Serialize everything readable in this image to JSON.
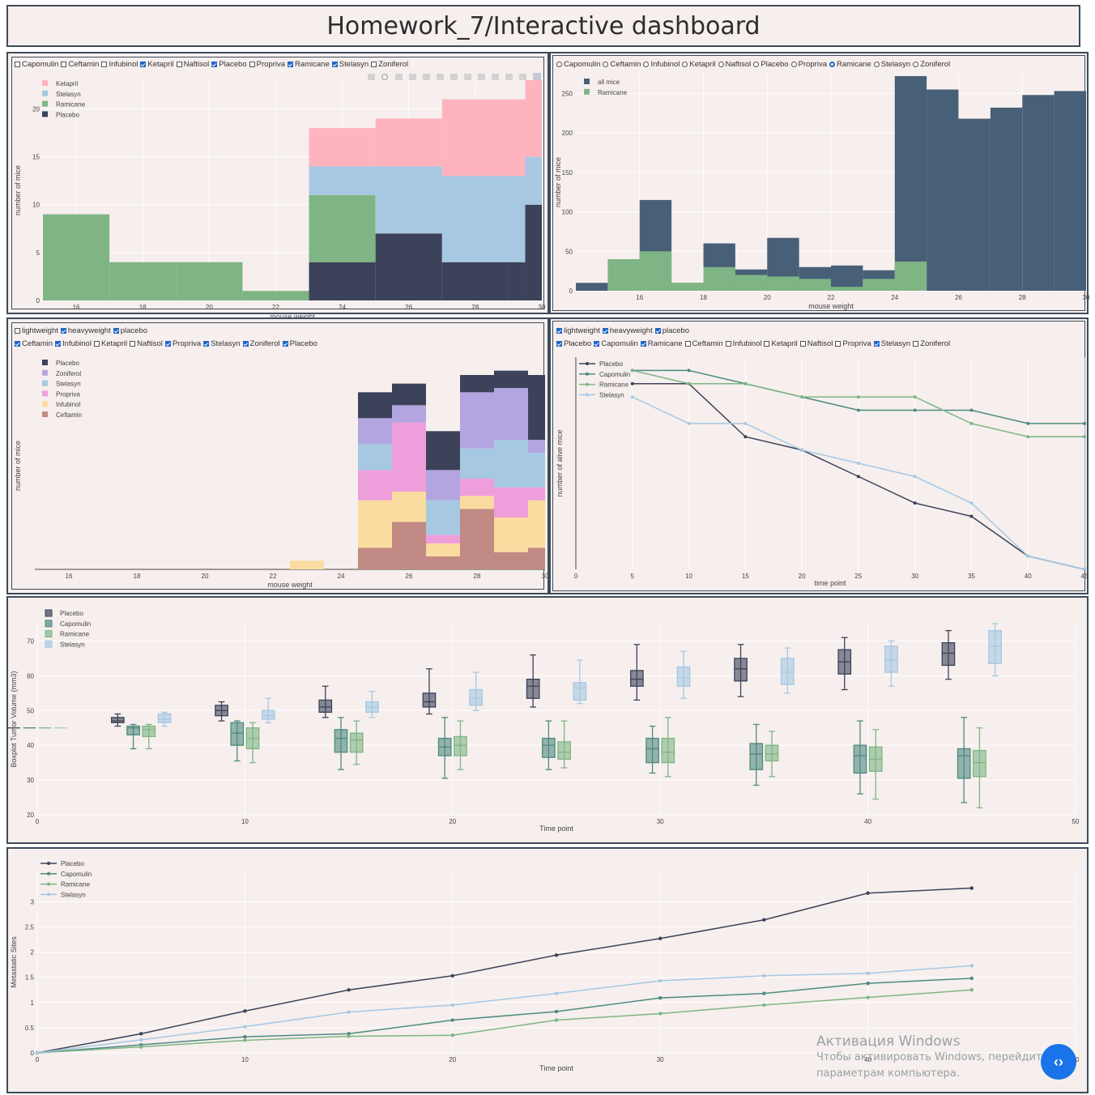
{
  "page_title": "Homework_7/Interactive dashboard",
  "panel1": {
    "checklist": [
      {
        "label": "Capomulin",
        "checked": false
      },
      {
        "label": "Ceftamin",
        "checked": false
      },
      {
        "label": "Infubinol",
        "checked": false
      },
      {
        "label": "Ketapril",
        "checked": true
      },
      {
        "label": "Naftisol",
        "checked": false
      },
      {
        "label": "Placebo",
        "checked": true
      },
      {
        "label": "Propriva",
        "checked": false
      },
      {
        "label": "Ramicane",
        "checked": true
      },
      {
        "label": "Stelasyn",
        "checked": true
      },
      {
        "label": "Zoniferol",
        "checked": false
      }
    ]
  },
  "panel2": {
    "radio": [
      {
        "label": "Capomulin",
        "checked": false
      },
      {
        "label": "Ceftamin",
        "checked": false
      },
      {
        "label": "Infubinol",
        "checked": false
      },
      {
        "label": "Ketapril",
        "checked": false
      },
      {
        "label": "Naftisol",
        "checked": false
      },
      {
        "label": "Placebo",
        "checked": false
      },
      {
        "label": "Propriva",
        "checked": false
      },
      {
        "label": "Ramicane",
        "checked": true
      },
      {
        "label": "Stelasyn",
        "checked": false
      },
      {
        "label": "Zoniferol",
        "checked": false
      }
    ]
  },
  "panel3": {
    "weight_checklist": [
      {
        "label": "lightweight",
        "checked": false
      },
      {
        "label": "heavyweight",
        "checked": true
      },
      {
        "label": "placebo",
        "checked": true
      }
    ],
    "drug_checklist": [
      {
        "label": "Ceftamin",
        "checked": true
      },
      {
        "label": "Infubinol",
        "checked": true
      },
      {
        "label": "Ketapril",
        "checked": false
      },
      {
        "label": "Naftisol",
        "checked": false
      },
      {
        "label": "Propriva",
        "checked": true
      },
      {
        "label": "Stelasyn",
        "checked": true
      },
      {
        "label": "Zoniferol",
        "checked": true
      },
      {
        "label": "Placebo",
        "checked": true
      }
    ]
  },
  "panel4": {
    "weight_checklist": [
      {
        "label": "lightweight",
        "checked": true
      },
      {
        "label": "heavyweight",
        "checked": true
      },
      {
        "label": "placebo",
        "checked": true
      }
    ],
    "drug_checklist": [
      {
        "label": "Placebo",
        "checked": true
      },
      {
        "label": "Capomulin",
        "checked": true
      },
      {
        "label": "Ramicane",
        "checked": true
      },
      {
        "label": "Ceftamin",
        "checked": false
      },
      {
        "label": "Infubinol",
        "checked": false
      },
      {
        "label": "Ketapril",
        "checked": false
      },
      {
        "label": "Naftisol",
        "checked": false
      },
      {
        "label": "Propriva",
        "checked": false
      },
      {
        "label": "Stelasyn",
        "checked": true
      },
      {
        "label": "Zoniferol",
        "checked": false
      }
    ]
  },
  "colors": {
    "Ketapril": "#ffb3bf",
    "Stelasyn": "#a6c8e3",
    "Ramicane": "#7fb585",
    "Placebo": "#3c4259",
    "Zoniferol": "#b3a5df",
    "Propriva": "#ef9edc",
    "Infubinol": "#fbdca0",
    "Ceftamin": "#c28a84",
    "Capomulin": "#4e8a7f",
    "AllMice": "#485f78"
  },
  "chart_data": [
    {
      "id": "weight_hist_stacked",
      "type": "bar",
      "xlabel": "mouse weight",
      "ylabel": "number of mice",
      "xlim": [
        15,
        30
      ],
      "ylim": [
        0,
        23
      ],
      "xticks": [
        16,
        18,
        20,
        22,
        24,
        26,
        28,
        30
      ],
      "yticks": [
        0,
        5,
        10,
        15,
        20
      ],
      "bin_edges": [
        15,
        17,
        19,
        21,
        23,
        25,
        27,
        29,
        29.5,
        30
      ],
      "series": [
        {
          "name": "Placebo",
          "values": [
            0,
            0,
            0,
            0,
            4,
            7,
            4,
            4,
            10
          ]
        },
        {
          "name": "Ramicane",
          "values": [
            9,
            4,
            4,
            1,
            7,
            0,
            0,
            0,
            0
          ]
        },
        {
          "name": "Stelasyn",
          "values": [
            0,
            0,
            0,
            0,
            3,
            7,
            9,
            9,
            5
          ]
        },
        {
          "name": "Ketapril",
          "values": [
            0,
            0,
            0,
            0,
            4,
            5,
            8,
            8,
            8
          ]
        }
      ],
      "legend": [
        "Ketapril",
        "Stelasyn",
        "Ramicane",
        "Placebo"
      ]
    },
    {
      "id": "weight_hist_overlay",
      "type": "bar",
      "xlabel": "mouse weight",
      "ylabel": "number of mice",
      "xlim": [
        14,
        30
      ],
      "ylim": [
        0,
        275
      ],
      "xticks": [
        16,
        18,
        20,
        22,
        24,
        26,
        28,
        30
      ],
      "yticks": [
        0,
        50,
        100,
        150,
        200,
        250
      ],
      "bin_edges": [
        14,
        15,
        16,
        17,
        18,
        19,
        20,
        21,
        22,
        23,
        24,
        25,
        26,
        27,
        28,
        29,
        30
      ],
      "series": [
        {
          "name": "all mice",
          "values": [
            10,
            0,
            115,
            10,
            60,
            27,
            67,
            30,
            32,
            26,
            272,
            255,
            218,
            232,
            248,
            253
          ]
        },
        {
          "name": "Ramicane",
          "values": [
            0,
            40,
            50,
            10,
            30,
            20,
            18,
            15,
            5,
            15,
            37,
            0,
            0,
            0,
            0,
            0
          ]
        }
      ],
      "legend": [
        "all mice",
        "Ramicane"
      ]
    },
    {
      "id": "weight_hist_drugs",
      "type": "bar",
      "xlabel": "mouse weight",
      "ylabel": "number of mice",
      "xlim": [
        15,
        30
      ],
      "ylim": [
        0,
        24
      ],
      "xticks": [
        16,
        18,
        20,
        22,
        24,
        26,
        28,
        30
      ],
      "bin_edges": [
        22.5,
        23.5,
        24.5,
        25.5,
        26.5,
        27.5,
        28.5,
        29.5,
        30
      ],
      "series": [
        {
          "name": "Ceftamin",
          "values": [
            0,
            0,
            2.5,
            5.5,
            1.5,
            7,
            2,
            2.5
          ]
        },
        {
          "name": "Infubinol",
          "values": [
            1,
            0,
            5.5,
            3.5,
            1.5,
            1.5,
            4,
            5.5
          ]
        },
        {
          "name": "Propriva",
          "values": [
            0,
            0,
            3.5,
            8,
            1,
            2,
            3.5,
            1.5
          ]
        },
        {
          "name": "Stelasyn",
          "values": [
            0,
            0,
            3,
            0,
            4,
            3.5,
            5.5,
            4
          ]
        },
        {
          "name": "Zoniferol",
          "values": [
            0,
            0,
            3,
            2,
            3.5,
            6.5,
            6,
            1.5
          ]
        },
        {
          "name": "Placebo",
          "values": [
            0,
            0,
            3,
            2.5,
            4.5,
            2,
            2,
            7.5
          ]
        }
      ],
      "legend": [
        "Placebo",
        "Zoniferol",
        "Stelasyn",
        "Propriva",
        "Infubinol",
        "Ceftamin"
      ]
    },
    {
      "id": "survival_lines",
      "type": "line",
      "xlabel": "time point",
      "ylabel": "number of alive mice",
      "xlim": [
        0,
        45
      ],
      "ylim": [
        0,
        16
      ],
      "xticks": [
        0,
        5,
        10,
        15,
        20,
        25,
        30,
        35,
        40,
        45
      ],
      "x": [
        5,
        10,
        15,
        20,
        25,
        30,
        35,
        40,
        45
      ],
      "series": [
        {
          "name": "Placebo",
          "values": [
            14,
            14,
            10,
            9,
            7,
            5,
            4,
            1,
            0
          ]
        },
        {
          "name": "Capomulin",
          "values": [
            15,
            15,
            14,
            13,
            12,
            12,
            12,
            11,
            11
          ]
        },
        {
          "name": "Ramicane",
          "values": [
            15,
            14,
            14,
            13,
            13,
            13,
            11,
            10,
            10
          ]
        },
        {
          "name": "Stelasyn",
          "values": [
            13,
            11,
            11,
            9,
            8,
            7,
            5,
            1,
            0
          ]
        }
      ]
    },
    {
      "id": "tumor_boxplot",
      "type": "box",
      "xlabel": "Time point",
      "ylabel": "Boxplot Tumor Volume (mm3)",
      "xlim": [
        0,
        50
      ],
      "ylim": [
        20,
        75
      ],
      "xticks": [
        0,
        10,
        20,
        30,
        40,
        50
      ],
      "yticks": [
        20,
        30,
        40,
        50,
        60,
        70
      ],
      "x": [
        0,
        5,
        10,
        15,
        20,
        25,
        30,
        35,
        40,
        45
      ],
      "series": [
        {
          "name": "Placebo",
          "boxes": [
            [
              45,
              45,
              45,
              45,
              45
            ],
            [
              45.5,
              46.5,
              47,
              48,
              49
            ],
            [
              47,
              48.5,
              50,
              51.5,
              52.5
            ],
            [
              48,
              49.5,
              51,
              53,
              57
            ],
            [
              49,
              51,
              52.5,
              55,
              62
            ],
            [
              51,
              53.5,
              57,
              59,
              66
            ],
            [
              53,
              57,
              59,
              61.5,
              69
            ],
            [
              54,
              58.5,
              62,
              65,
              69
            ],
            [
              56,
              60.5,
              64,
              67.5,
              71
            ],
            [
              59,
              63,
              66.5,
              69.5,
              73
            ]
          ]
        },
        {
          "name": "Capomulin",
          "boxes": [
            [
              45,
              45,
              45,
              45,
              45
            ],
            [
              39,
              43,
              45,
              45.5,
              46
            ],
            [
              35.5,
              40,
              43.5,
              46.5,
              47
            ],
            [
              33,
              38,
              42,
              44.5,
              48
            ],
            [
              30.5,
              37,
              39.5,
              42,
              48
            ],
            [
              33,
              36.5,
              40,
              42,
              47
            ],
            [
              32,
              35,
              39,
              42,
              45.5
            ],
            [
              28.5,
              33,
              37.5,
              40.5,
              46
            ],
            [
              26,
              32,
              37,
              40,
              47
            ],
            [
              23.5,
              30.5,
              37,
              39,
              48
            ]
          ]
        },
        {
          "name": "Ramicane",
          "boxes": [
            [
              45,
              45,
              45,
              45,
              45
            ],
            [
              39,
              42.5,
              44.5,
              45.5,
              46
            ],
            [
              35,
              39,
              42,
              45,
              46.5
            ],
            [
              34.5,
              38,
              41.5,
              43.5,
              47
            ],
            [
              33,
              37,
              40,
              42.5,
              47
            ],
            [
              33.5,
              36,
              38,
              41,
              47
            ],
            [
              31,
              35,
              38,
              42,
              48
            ],
            [
              31,
              35.5,
              37.5,
              40,
              44
            ],
            [
              24.5,
              32.5,
              36,
              39.5,
              44.5
            ],
            [
              22,
              31,
              35,
              38.5,
              45
            ]
          ]
        },
        {
          "name": "Stelasyn",
          "boxes": [
            [
              45,
              45,
              45,
              45,
              45
            ],
            [
              45.5,
              46.5,
              47.5,
              49,
              49.5
            ],
            [
              46.5,
              47.5,
              48.5,
              50,
              53.5
            ],
            [
              48,
              49.5,
              51,
              52.5,
              55.5
            ],
            [
              50,
              51.5,
              53.5,
              56,
              61
            ],
            [
              52,
              53,
              56.5,
              58,
              64.5
            ],
            [
              53.5,
              57,
              59.5,
              62.5,
              67
            ],
            [
              55,
              57.5,
              61,
              65,
              68
            ],
            [
              57,
              61,
              64.5,
              68.5,
              70
            ],
            [
              60,
              63.5,
              68.5,
              73,
              75
            ]
          ]
        }
      ]
    },
    {
      "id": "metastatic_lines",
      "type": "line",
      "xlabel": "Time point",
      "ylabel": "Metastatic Sites",
      "xlim": [
        0,
        50
      ],
      "ylim": [
        0,
        3.6
      ],
      "xticks": [
        0,
        10,
        20,
        30,
        40,
        50
      ],
      "yticks": [
        0,
        0.5,
        1,
        1.5,
        2,
        2.5,
        3
      ],
      "x": [
        0,
        5,
        10,
        15,
        20,
        25,
        30,
        35,
        40,
        45
      ],
      "series": [
        {
          "name": "Placebo",
          "values": [
            0,
            0.38,
            0.83,
            1.25,
            1.53,
            1.94,
            2.27,
            2.64,
            3.17,
            3.27
          ]
        },
        {
          "name": "Capomulin",
          "values": [
            0,
            0.16,
            0.32,
            0.38,
            0.65,
            0.82,
            1.09,
            1.18,
            1.38,
            1.48
          ]
        },
        {
          "name": "Ramicane",
          "values": [
            0,
            0.12,
            0.25,
            0.33,
            0.35,
            0.65,
            0.78,
            0.95,
            1.1,
            1.25
          ]
        },
        {
          "name": "Stelasyn",
          "values": [
            0,
            0.26,
            0.52,
            0.81,
            0.95,
            1.18,
            1.43,
            1.53,
            1.58,
            1.73
          ]
        }
      ]
    }
  ],
  "watermark": {
    "title": "Активация Windows",
    "line1": "Чтобы активировать Windows, перейдите",
    "line2": "параметрам компьютера."
  },
  "fab_label": "‹›"
}
